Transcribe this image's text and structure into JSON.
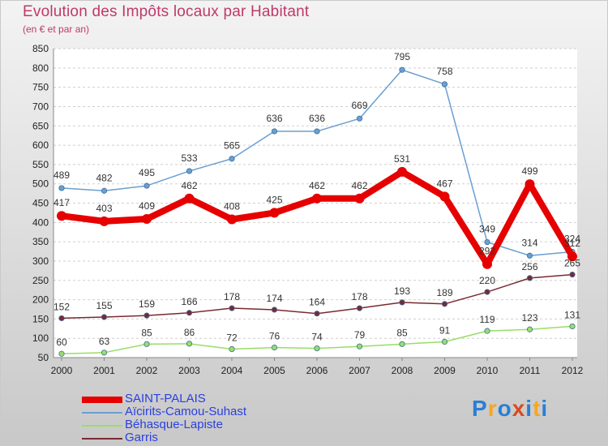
{
  "chart_data": {
    "type": "line",
    "title": "Evolution des Impôts locaux par Habitant",
    "subtitle": "(en € et par an)",
    "x": [
      "2000",
      "2001",
      "2002",
      "2003",
      "2004",
      "2005",
      "2006",
      "2007",
      "2008",
      "2009",
      "2010",
      "2011",
      "2012"
    ],
    "ylim": [
      50,
      850
    ],
    "yticks": [
      50,
      100,
      150,
      200,
      250,
      300,
      350,
      400,
      450,
      500,
      550,
      600,
      650,
      700,
      750,
      800,
      850
    ],
    "grid": "horizontal",
    "legend_position": "bottom-left",
    "series": [
      {
        "name": "SAINT-PALAIS",
        "color": "#e60000",
        "values": [
          417,
          403,
          409,
          462,
          408,
          425,
          462,
          462,
          531,
          467,
          292,
          499,
          312
        ]
      },
      {
        "name": "Aïcirits-Camou-Suhast",
        "color": "#6a9fd0",
        "values": [
          489,
          482,
          495,
          533,
          565,
          636,
          636,
          669,
          795,
          758,
          349,
          314,
          324
        ]
      },
      {
        "name": "Béhasque-Lapiste",
        "color": "#99dd66",
        "values": [
          60,
          63,
          85,
          86,
          72,
          76,
          74,
          79,
          85,
          91,
          119,
          123,
          131
        ]
      },
      {
        "name": "Garris",
        "color": "#7a2a30",
        "values": [
          152,
          155,
          159,
          166,
          178,
          174,
          164,
          178,
          193,
          189,
          220,
          256,
          265
        ]
      }
    ]
  },
  "logo": {
    "text": "Proxiti",
    "letters": [
      "P",
      "r",
      "o",
      "x",
      "i",
      "t",
      "i"
    ],
    "colors": [
      "#2a7fd4",
      "#f5a623",
      "#2a7fd4",
      "#d94a1e",
      "#2a7fd4",
      "#f5a623",
      "#2a7fd4"
    ]
  }
}
